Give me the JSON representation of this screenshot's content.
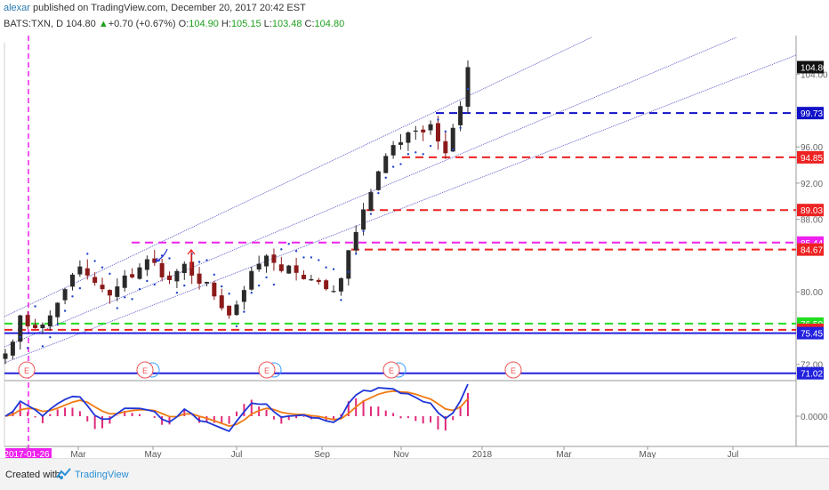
{
  "header": {
    "user": "alexar",
    "published": " published on TradingView.com, December 20, 2017 20:42 EST",
    "symbol": "BATS:TXN, D ",
    "price": "104.80",
    "change_arrow": "▲",
    "change": "+0.70 (+0.67%)",
    "o_label": " O:",
    "o": "104.90",
    "h_label": " H:",
    "h": "105.15",
    "l_label": " L:",
    "l": "103.48",
    "c_label": " C:",
    "c": "104.80"
  },
  "footer": {
    "created": "Created with",
    "brand": "TradingView"
  },
  "chart_data": {
    "type": "candlestick",
    "price_axis": {
      "ylim": [
        70.5,
        107.5
      ],
      "ticks": [
        "104.00",
        "96.00",
        "92.00",
        "88.00",
        "80.00",
        "72.00"
      ]
    },
    "time_axis": {
      "ticks": [
        "2017-01-26",
        "Mar",
        "May",
        "Jul",
        "Sep",
        "Nov",
        "2018",
        "Mar",
        "May",
        "Jul"
      ],
      "highlighted_tick": "2017-01-26"
    },
    "closes": [
      73.2,
      74.5,
      77.4,
      76.2,
      76.0,
      76.4,
      77.4,
      78.8,
      80.3,
      81.9,
      82.8,
      81.8,
      81.0,
      80.3,
      79.6,
      80.6,
      81.8,
      81.6,
      82.7,
      83.6,
      83.2,
      81.6,
      81.3,
      82.3,
      83.1,
      81.8,
      80.9,
      81.1,
      79.5,
      78.2,
      77.4,
      78.6,
      80.2,
      82.3,
      83.1,
      84.0,
      83.2,
      82.3,
      82.9,
      82.1,
      81.4,
      81.4,
      81.1,
      80.3,
      80.1,
      81.5,
      84.6,
      86.6,
      89.1,
      91.0,
      93.3,
      95.0,
      96.2,
      96.5,
      97.6,
      97.8,
      97.6,
      98.5,
      96.6,
      95.3,
      98.1,
      100.5,
      104.8
    ],
    "price_lines": [
      {
        "value": "99.73",
        "color": "#1010c8",
        "style": "dashed"
      },
      {
        "value": "94.85",
        "color": "#ee2222",
        "style": "dashed"
      },
      {
        "value": "89.03",
        "color": "#ee2222",
        "style": "dashed"
      },
      {
        "value": "85.44",
        "color": "#ee22ee",
        "style": "dashed"
      },
      {
        "value": "84.67",
        "color": "#ee2222",
        "style": "dashed"
      },
      {
        "value": "76.50",
        "color": "#22dd22",
        "style": "dashed"
      },
      {
        "value": "75.81",
        "color": "#ee2222",
        "style": "dashed"
      },
      {
        "value": "75.45",
        "color": "#2222dd",
        "style": "solid"
      },
      {
        "value": "71.02",
        "color": "#2222dd",
        "style": "solid"
      }
    ],
    "last_price": "104.80",
    "earnings_marker": "E",
    "earnings_count": 5,
    "oscillator": {
      "zero_label": "0.0000",
      "series": [
        "MACD",
        "Signal",
        "Histogram"
      ]
    },
    "colors": {
      "up": "#2a2a2a",
      "down": "#8b1a1a",
      "macd": "#1f35d6",
      "signal": "#f07a12",
      "hist": "#e0287a",
      "psar": "#2244cc",
      "channel": "#4040c0"
    }
  }
}
